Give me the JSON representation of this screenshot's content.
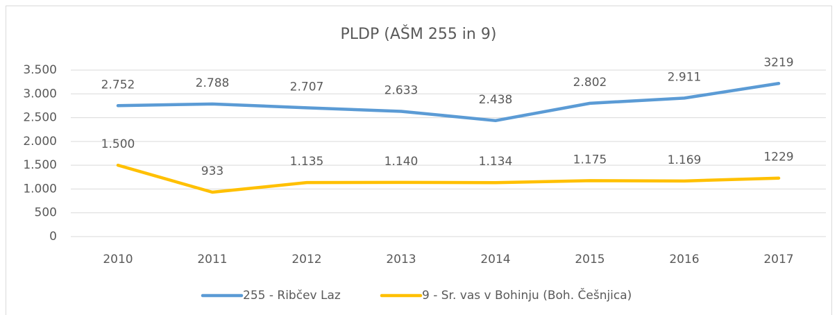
{
  "chart_data": {
    "type": "line",
    "title": "PLDP (AŠM 255 in 9)",
    "categories": [
      "2010",
      "2011",
      "2012",
      "2013",
      "2014",
      "2015",
      "2016",
      "2017"
    ],
    "series": [
      {
        "name": "255 - Ribčev Laz",
        "color": "#5b9bd5",
        "values": [
          2752,
          2788,
          2707,
          2633,
          2438,
          2802,
          2911,
          3219
        ],
        "value_labels": [
          "2.752",
          "2.788",
          "2.707",
          "2.633",
          "2.438",
          "2.802",
          "2.911",
          "3219"
        ]
      },
      {
        "name": "9 - Sr. vas v Bohinju (Boh. Češnjica)",
        "color": "#ffc000",
        "values": [
          1500,
          933,
          1135,
          1140,
          1134,
          1175,
          1169,
          1229
        ],
        "value_labels": [
          "1.500",
          "933",
          "1.135",
          "1.140",
          "1.134",
          "1.175",
          "1.169",
          "1229"
        ]
      }
    ],
    "ylim": [
      0,
      3500
    ],
    "yticks": [
      0,
      500,
      {
        "value": 1000,
        "label": "1.000"
      },
      {
        "value": 1500,
        "label": "1.500"
      },
      {
        "value": 2000,
        "label": "2.000"
      },
      {
        "value": 2500,
        "label": "2.500"
      },
      {
        "value": 3000,
        "label": "3.000"
      },
      {
        "value": 3500,
        "label": "3.500"
      }
    ],
    "grid": true,
    "legend": "bottom"
  }
}
